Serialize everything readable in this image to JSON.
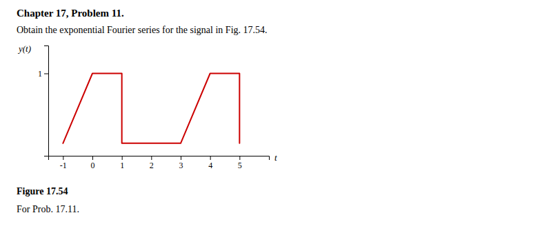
{
  "chart_data": {
    "type": "line",
    "title": "Chapter 17, Problem 11.",
    "subtitle": "Obtain the exponential Fourier series for the signal in Fig. 17.54.",
    "annotations": [
      "Figure 17.54",
      "For Prob. 17.11."
    ],
    "x_label": "t",
    "y_label": "y(t)",
    "x": [
      -1,
      0,
      1,
      1,
      3,
      4,
      5,
      5
    ],
    "series": [
      {
        "color": "#cc0000",
        "values": [
          0,
          1,
          1,
          0,
          0,
          1,
          1,
          0
        ]
      }
    ],
    "xlim": [
      -1.5,
      6.0
    ],
    "ylim": [
      -0.18,
      1.4
    ],
    "xticks": [
      -1,
      0,
      1,
      2,
      3,
      4,
      5
    ],
    "yticks": [
      1
    ],
    "grid": false
  }
}
